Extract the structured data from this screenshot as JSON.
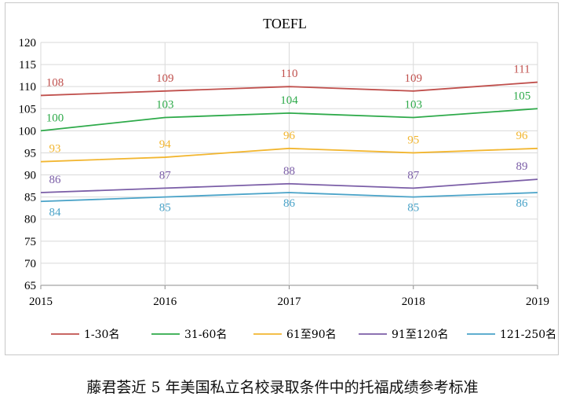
{
  "chart_data": {
    "type": "line",
    "title": "TOEFL",
    "xlabel": "",
    "ylabel": "",
    "x": [
      "2015",
      "2016",
      "2017",
      "2018",
      "2019"
    ],
    "ylim": [
      65,
      120
    ],
    "ytick_step": 5,
    "grid": true,
    "legend": "bottom",
    "series": [
      {
        "name": "1-30名",
        "color": "#c0504d",
        "values": [
          108,
          109,
          110,
          109,
          111
        ]
      },
      {
        "name": "31-60名",
        "color": "#2eaa4a",
        "values": [
          100,
          103,
          104,
          103,
          105
        ]
      },
      {
        "name": "61至90名",
        "color": "#f2b630",
        "values": [
          93,
          94,
          96,
          95,
          96
        ]
      },
      {
        "name": "91至120名",
        "color": "#7b5ea7",
        "values": [
          86,
          87,
          88,
          87,
          89
        ]
      },
      {
        "name": "121-250名",
        "color": "#4aa3c8",
        "values": [
          84,
          85,
          86,
          85,
          86
        ]
      }
    ]
  },
  "caption": "藤君荟近 5 年美国私立名校录取条件中的托福成绩参考标准"
}
